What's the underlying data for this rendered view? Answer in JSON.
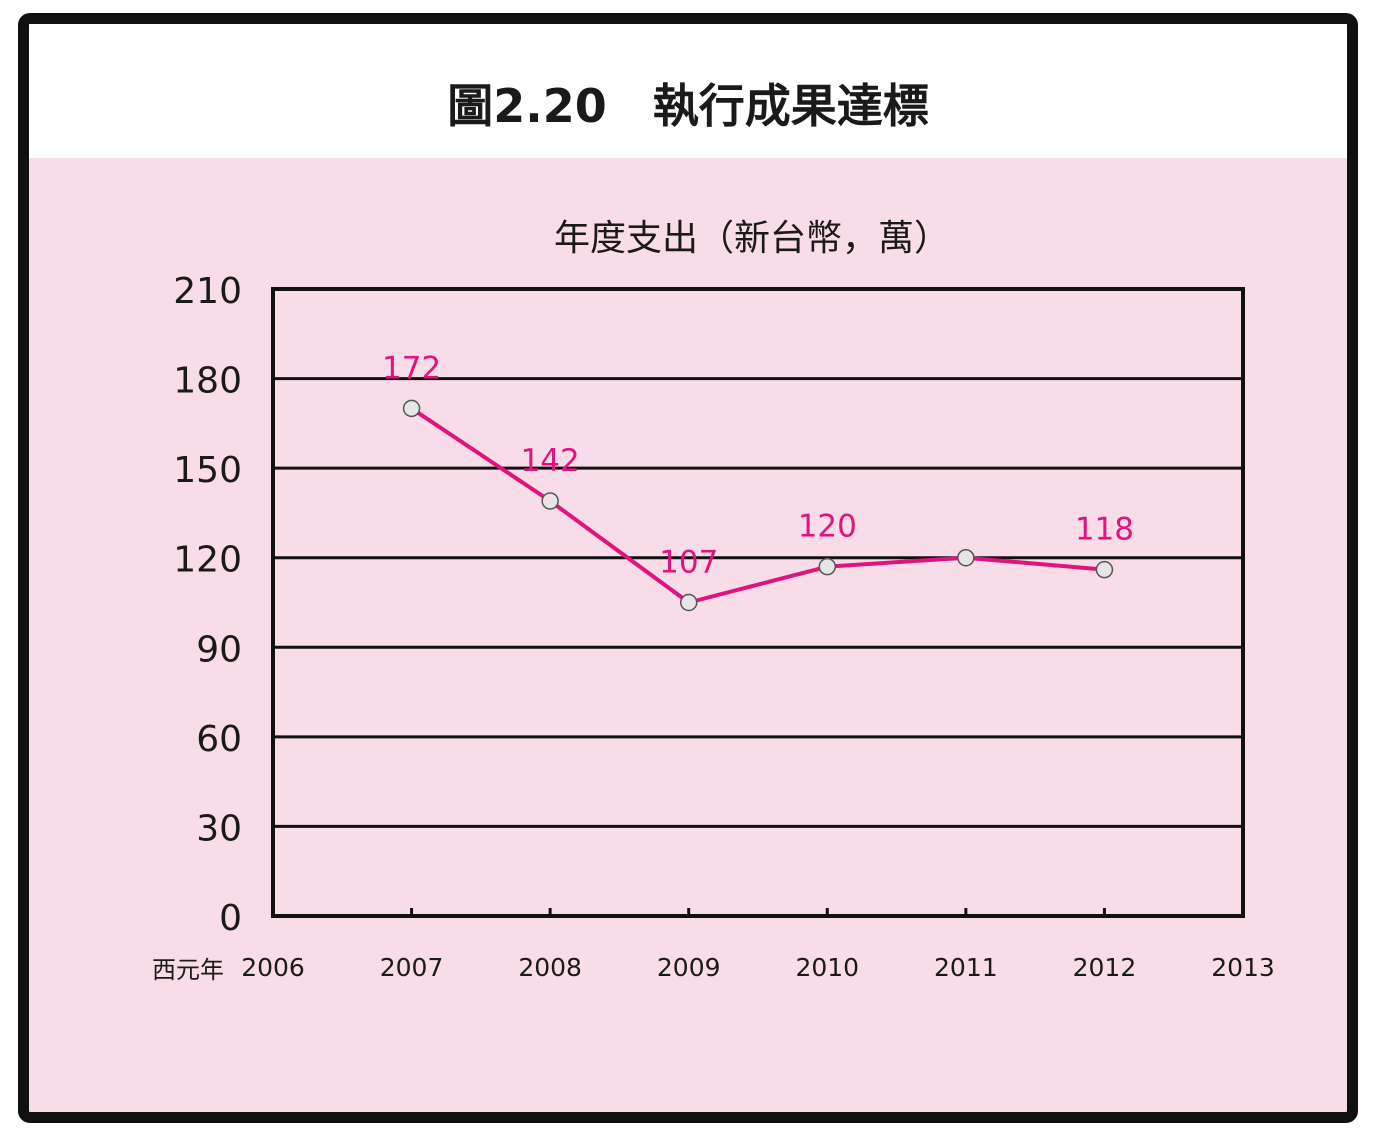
{
  "title": "圖2.20　執行成果達標",
  "chart_data": {
    "type": "line",
    "title": "年度支出（新台幣，萬）",
    "xlabel": "西元年",
    "ylabel": "",
    "categories": [
      "2006",
      "2007",
      "2008",
      "2009",
      "2010",
      "2011",
      "2012",
      "2013"
    ],
    "x_ticks": [
      "2006",
      "2007",
      "2008",
      "2009",
      "2010",
      "2011",
      "2012",
      "2013"
    ],
    "y_ticks": [
      "0",
      "30",
      "60",
      "90",
      "120",
      "150",
      "180",
      "210"
    ],
    "ylim": [
      0,
      210
    ],
    "xlim": [
      2006,
      2013
    ],
    "grid": true,
    "series": [
      {
        "x": [
          2007,
          2008,
          2009,
          2010,
          2011,
          2012
        ],
        "values": [
          172,
          142,
          107,
          120,
          120,
          118
        ],
        "point_values": [
          170,
          139,
          105,
          117,
          120,
          116
        ],
        "labels": [
          "172",
          "142",
          "107",
          "120",
          "",
          "118"
        ],
        "color": "#e0137f"
      }
    ],
    "colors": {
      "background": "#f8dce7",
      "line": "#e0137f",
      "marker_fill": "#e6e6e6",
      "axis": "#111111"
    }
  }
}
